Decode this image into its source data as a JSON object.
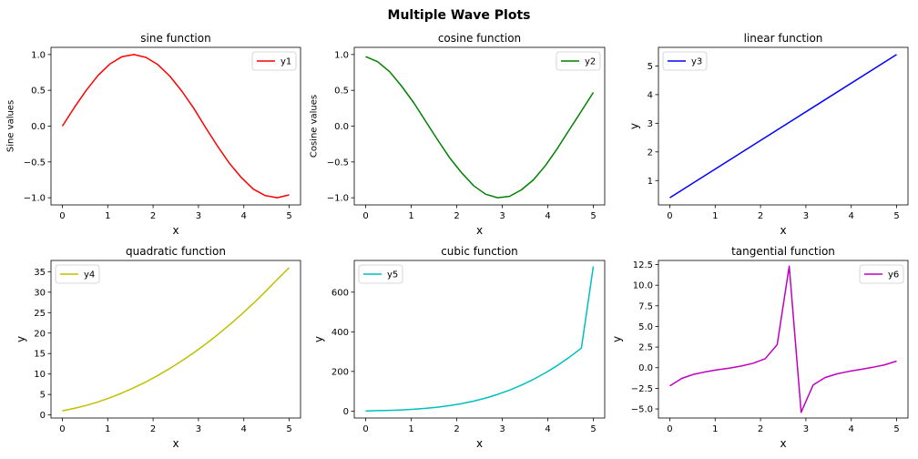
{
  "figure": {
    "suptitle": "Multiple Wave Plots"
  },
  "chart_data": [
    {
      "type": "line",
      "title": "sine function",
      "xlabel": "x",
      "ylabel": "Sine values",
      "xlim": [
        -0.25,
        5.25
      ],
      "ylim": [
        -1.1,
        1.1
      ],
      "xticks": [
        0,
        1,
        2,
        3,
        4,
        5
      ],
      "xtick_labels": [
        "0",
        "1",
        "2",
        "3",
        "4",
        "5"
      ],
      "yticks": [
        -1.0,
        -0.5,
        0.0,
        0.5,
        1.0
      ],
      "ytick_labels": [
        "−1.0",
        "−0.5",
        "0.0",
        "0.5",
        "1.0"
      ],
      "legend_loc": "upper-right",
      "grid": false,
      "series": [
        {
          "name": "y1",
          "color": "#ff0000",
          "x": [
            0,
            0.263,
            0.526,
            0.789,
            1.053,
            1.316,
            1.579,
            1.842,
            2.105,
            2.368,
            2.632,
            2.895,
            3.158,
            3.421,
            3.684,
            3.947,
            4.211,
            4.474,
            4.737,
            5.0
          ],
          "y": [
            0.0,
            0.26,
            0.5,
            0.71,
            0.87,
            0.97,
            1.0,
            0.96,
            0.86,
            0.7,
            0.49,
            0.25,
            -0.02,
            -0.28,
            -0.52,
            -0.72,
            -0.88,
            -0.97,
            -1.0,
            -0.96
          ]
        }
      ]
    },
    {
      "type": "line",
      "title": "cosine function",
      "xlabel": "x",
      "ylabel": "Cosine values",
      "xlim": [
        -0.25,
        5.25
      ],
      "ylim": [
        -1.1,
        1.1
      ],
      "xticks": [
        0,
        1,
        2,
        3,
        4,
        5
      ],
      "xtick_labels": [
        "0",
        "1",
        "2",
        "3",
        "4",
        "5"
      ],
      "yticks": [
        -1.0,
        -0.5,
        0.0,
        0.5,
        1.0
      ],
      "ytick_labels": [
        "−1.0",
        "−0.5",
        "0.0",
        "0.5",
        "1.0"
      ],
      "legend_loc": "upper-right",
      "grid": false,
      "series": [
        {
          "name": "y2",
          "color": "#008000",
          "x": [
            0,
            0.263,
            0.526,
            0.789,
            1.053,
            1.316,
            1.579,
            1.842,
            2.105,
            2.368,
            2.632,
            2.895,
            3.158,
            3.421,
            3.684,
            3.947,
            4.211,
            4.474,
            4.737,
            5.0
          ],
          "y": [
            0.97,
            0.9,
            0.76,
            0.56,
            0.33,
            0.07,
            -0.19,
            -0.44,
            -0.65,
            -0.83,
            -0.95,
            -1.0,
            -0.98,
            -0.89,
            -0.75,
            -0.55,
            -0.31,
            -0.05,
            0.21,
            0.47
          ]
        }
      ]
    },
    {
      "type": "line",
      "title": "linear function",
      "xlabel": "x",
      "ylabel": "y",
      "xlim": [
        -0.25,
        5.25
      ],
      "ylim": [
        0.15,
        5.65
      ],
      "xticks": [
        0,
        1,
        2,
        3,
        4,
        5
      ],
      "xtick_labels": [
        "0",
        "1",
        "2",
        "3",
        "4",
        "5"
      ],
      "yticks": [
        1,
        2,
        3,
        4,
        5
      ],
      "ytick_labels": [
        "1",
        "2",
        "3",
        "4",
        "5"
      ],
      "legend_loc": "upper-left",
      "grid": false,
      "series": [
        {
          "name": "y3",
          "color": "#0000ff",
          "x": [
            0,
            5
          ],
          "y": [
            0.4,
            5.4
          ]
        }
      ]
    },
    {
      "type": "line",
      "title": "quadratic function",
      "xlabel": "x",
      "ylabel": "y",
      "xlim": [
        -0.25,
        5.25
      ],
      "ylim": [
        -0.75,
        37.75
      ],
      "xticks": [
        0,
        1,
        2,
        3,
        4,
        5
      ],
      "xtick_labels": [
        "0",
        "1",
        "2",
        "3",
        "4",
        "5"
      ],
      "yticks": [
        0,
        5,
        10,
        15,
        20,
        25,
        30,
        35
      ],
      "ytick_labels": [
        "0",
        "5",
        "10",
        "15",
        "20",
        "25",
        "30",
        "35"
      ],
      "legend_loc": "upper-left",
      "grid": false,
      "series": [
        {
          "name": "y4",
          "color": "#bfbf00",
          "x": [
            0,
            0.263,
            0.526,
            0.789,
            1.053,
            1.316,
            1.579,
            1.842,
            2.105,
            2.368,
            2.632,
            2.895,
            3.158,
            3.421,
            3.684,
            3.947,
            4.211,
            4.474,
            4.737,
            5.0
          ],
          "y": [
            1.0,
            1.6,
            2.33,
            3.2,
            4.21,
            5.36,
            6.65,
            8.07,
            9.64,
            11.35,
            13.2,
            15.19,
            17.32,
            19.6,
            22.01,
            24.57,
            27.27,
            30.11,
            33.09,
            36.0
          ]
        }
      ]
    },
    {
      "type": "line",
      "title": "cubic function",
      "xlabel": "x",
      "ylabel": "y",
      "xlim": [
        -0.25,
        5.25
      ],
      "ylim": [
        -35,
        760
      ],
      "xticks": [
        0,
        1,
        2,
        3,
        4,
        5
      ],
      "xtick_labels": [
        "0",
        "1",
        "2",
        "3",
        "4",
        "5"
      ],
      "yticks": [
        0,
        200,
        400,
        600
      ],
      "ytick_labels": [
        "0",
        "200",
        "400",
        "600"
      ],
      "legend_loc": "upper-left",
      "grid": false,
      "series": [
        {
          "name": "y5",
          "color": "#00bfbf",
          "x": [
            0,
            0.263,
            0.526,
            0.789,
            1.053,
            1.316,
            1.579,
            1.842,
            2.105,
            2.368,
            2.632,
            2.895,
            3.158,
            3.421,
            3.684,
            3.947,
            4.211,
            4.474,
            4.737,
            5.0
          ],
          "y": [
            1.0,
            2.0,
            3.5,
            5.8,
            9.0,
            13.6,
            19.7,
            27.6,
            37.6,
            50.2,
            65.6,
            84.0,
            105.7,
            131.0,
            160.0,
            193.0,
            230.0,
            272.0,
            318.0,
            730.0
          ]
        }
      ]
    },
    {
      "type": "line",
      "title": "tangential function",
      "xlabel": "x",
      "ylabel": "y",
      "xlim": [
        -0.25,
        5.25
      ],
      "ylim": [
        -6.1,
        13.0
      ],
      "xticks": [
        0,
        1,
        2,
        3,
        4,
        5
      ],
      "xtick_labels": [
        "0",
        "1",
        "2",
        "3",
        "4",
        "5"
      ],
      "yticks": [
        -5.0,
        -2.5,
        0.0,
        2.5,
        5.0,
        7.5,
        10.0,
        12.5
      ],
      "ytick_labels": [
        "−5.0",
        "−2.5",
        "0.0",
        "2.5",
        "5.0",
        "7.5",
        "10.0",
        "12.5"
      ],
      "legend_loc": "upper-right",
      "grid": false,
      "series": [
        {
          "name": "y6",
          "color": "#bf00bf",
          "x": [
            0,
            0.263,
            0.526,
            0.789,
            1.053,
            1.316,
            1.579,
            1.842,
            2.105,
            2.368,
            2.632,
            2.895,
            3.158,
            3.421,
            3.684,
            3.947,
            4.211,
            4.474,
            4.737,
            5.0
          ],
          "y": [
            -2.2,
            -1.3,
            -0.8,
            -0.5,
            -0.25,
            -0.05,
            0.2,
            0.55,
            1.1,
            2.8,
            12.3,
            -5.4,
            -2.1,
            -1.2,
            -0.75,
            -0.45,
            -0.2,
            0.05,
            0.35,
            0.8
          ]
        }
      ]
    }
  ]
}
